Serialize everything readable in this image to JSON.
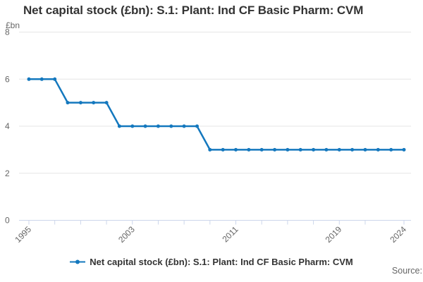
{
  "chart": {
    "title": "Net capital stock (£bn): S.1: Plant: Ind CF Basic Pharm: CVM",
    "y_unit_label": "£bn"
  },
  "legend": {
    "label": "Net capital stock (£bn): S.1: Plant: Ind CF Basic Pharm: CVM"
  },
  "footer": {
    "source_label": "Source:"
  },
  "colors": {
    "line": "#1478be",
    "grid": "#e6e6e6",
    "axis": "#ccd6eb",
    "muted_text": "#666666",
    "title_text": "#333333"
  },
  "chart_data": {
    "type": "line",
    "title": "Net capital stock (£bn): S.1: Plant: Ind CF Basic Pharm: CVM",
    "series_name": "Net capital stock (£bn): S.1: Plant: Ind CF Basic Pharm: CVM",
    "xlabel": "",
    "ylabel": "£bn",
    "x": [
      1995,
      1996,
      1997,
      1998,
      1999,
      2000,
      2001,
      2002,
      2003,
      2004,
      2005,
      2006,
      2007,
      2008,
      2009,
      2010,
      2011,
      2012,
      2013,
      2014,
      2015,
      2016,
      2017,
      2018,
      2019,
      2020,
      2021,
      2022,
      2023,
      2024
    ],
    "values": [
      6,
      6,
      6,
      5,
      5,
      5,
      5,
      4,
      4,
      4,
      4,
      4,
      4,
      4,
      3,
      3,
      3,
      3,
      3,
      3,
      3,
      3,
      3,
      3,
      3,
      3,
      3,
      3,
      3,
      3
    ],
    "ylim": [
      0,
      8
    ],
    "y_ticks": [
      0,
      2,
      4,
      6,
      8
    ],
    "x_ticks": [
      1995,
      1997,
      1999,
      2001,
      2003,
      2005,
      2007,
      2009,
      2011,
      2013,
      2015,
      2017,
      2019,
      2021,
      2024
    ],
    "x_tick_labels": [
      "1995",
      "2003",
      "2011",
      "2019",
      "2024"
    ],
    "grid": true,
    "marker": "circle",
    "legend_position": "bottom"
  }
}
